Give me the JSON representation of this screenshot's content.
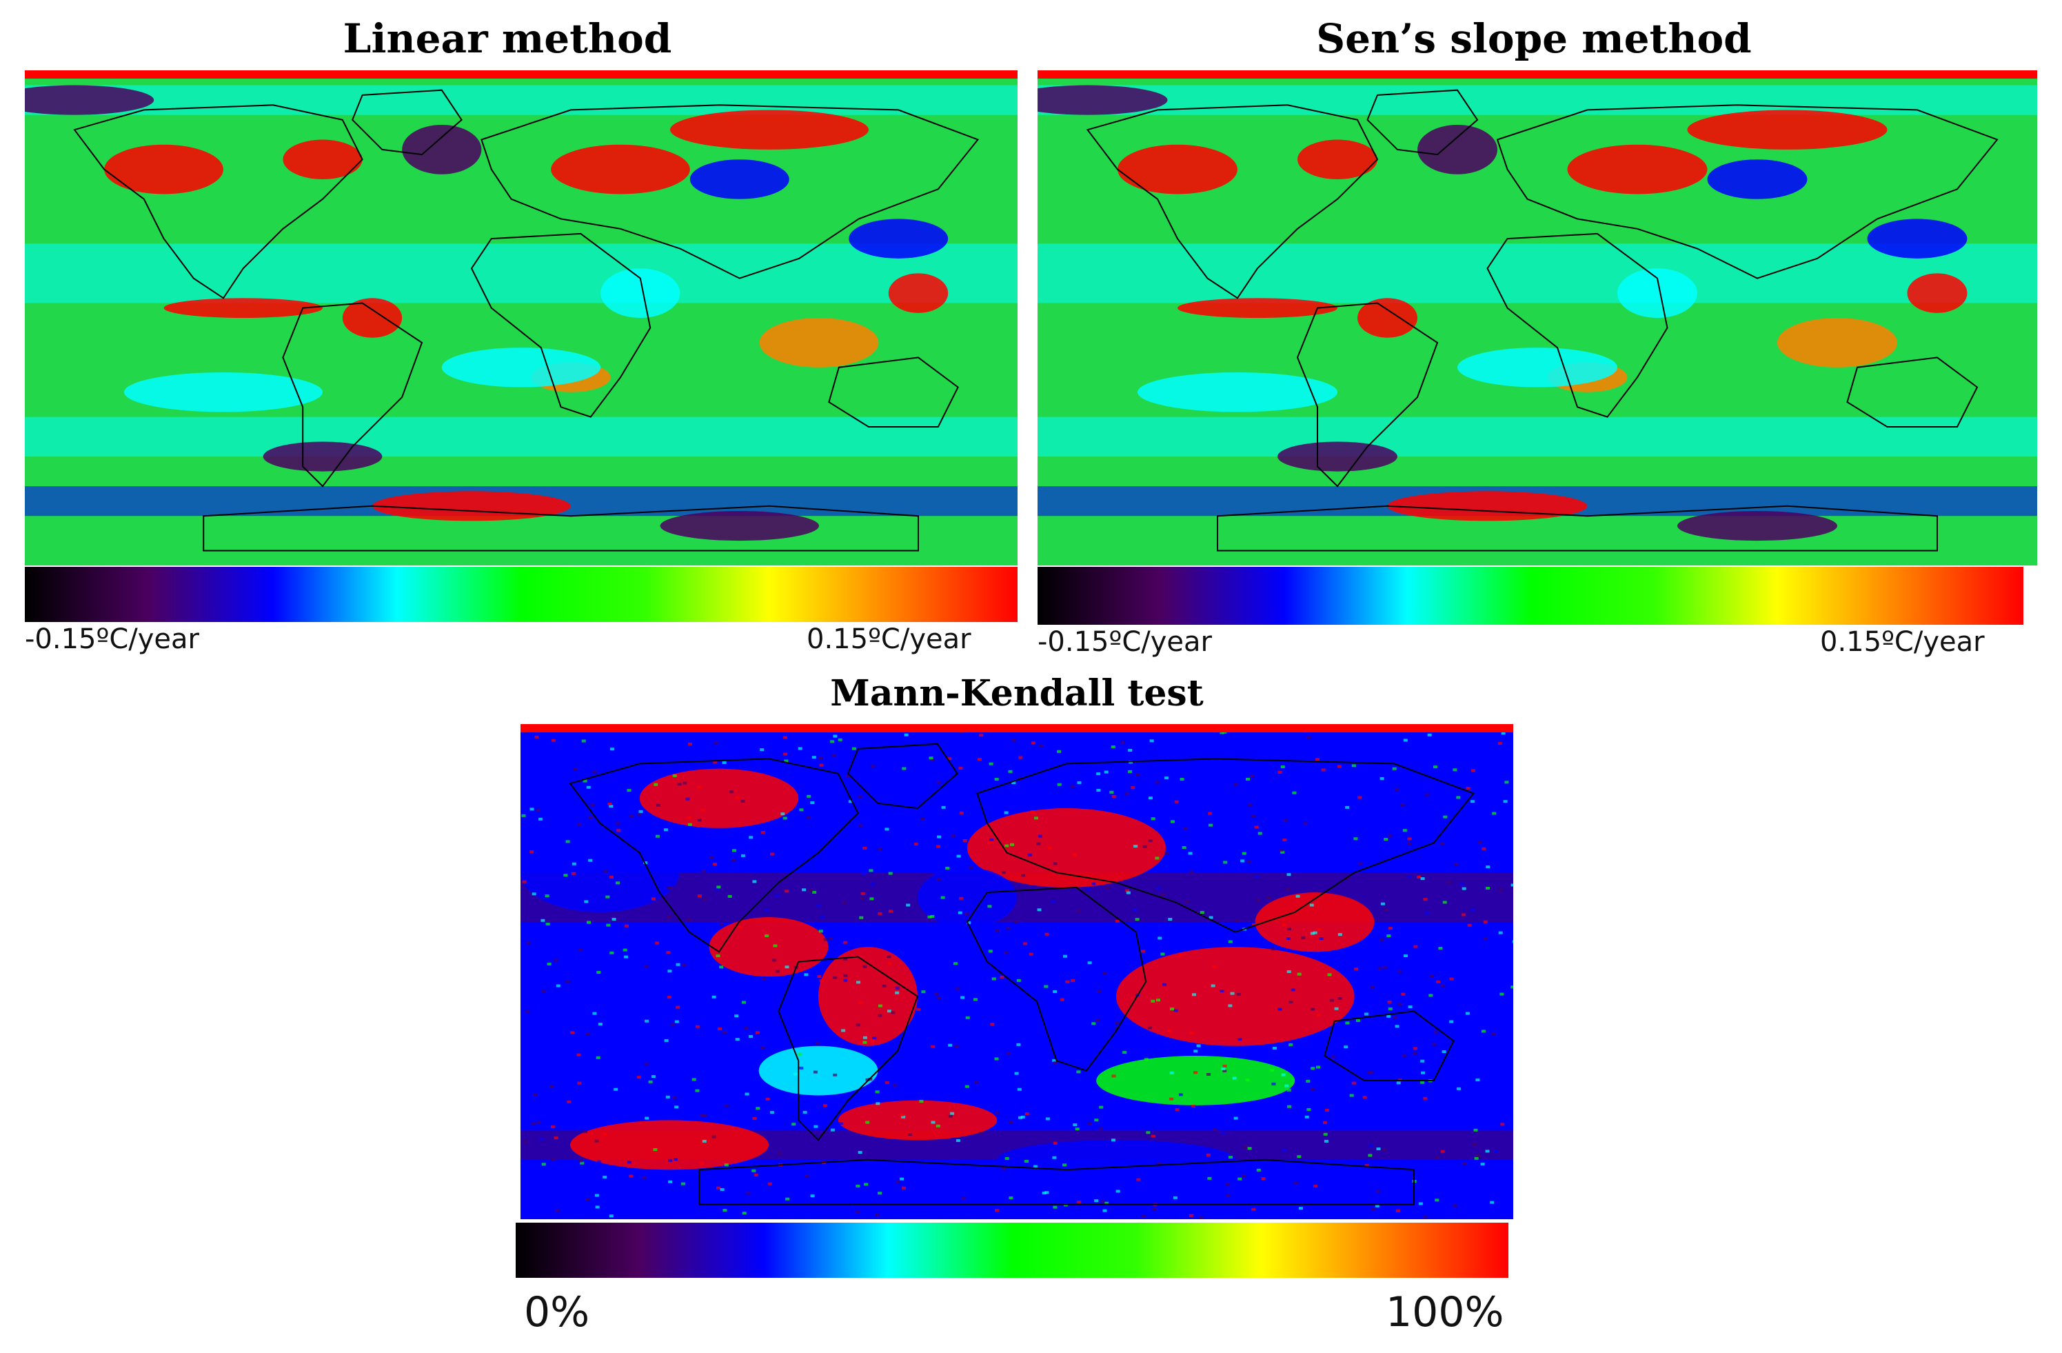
{
  "panels": [
    {
      "id": "linear",
      "title": "Linear method",
      "colorbar": {
        "min_label": "-0.15ºC/year",
        "max_label": "0.15ºC/year"
      }
    },
    {
      "id": "sen",
      "title": "Sen’s slope method",
      "colorbar": {
        "min_label": "-0.15ºC/year",
        "max_label": "0.15ºC/year"
      }
    },
    {
      "id": "mk",
      "title": "Mann-Kendall test",
      "colorbar": {
        "min_label": "0%",
        "max_label": "100%"
      }
    }
  ],
  "colormap": [
    "#000000",
    "#4b0060",
    "#0000ff",
    "#00ffff",
    "#00ff00",
    "#33ff00",
    "#ffff00",
    "#ff8000",
    "#ff0000"
  ],
  "colors": {
    "polar_band": "#ff0000",
    "ocean": "#22d84a",
    "coastline": "#000000"
  }
}
